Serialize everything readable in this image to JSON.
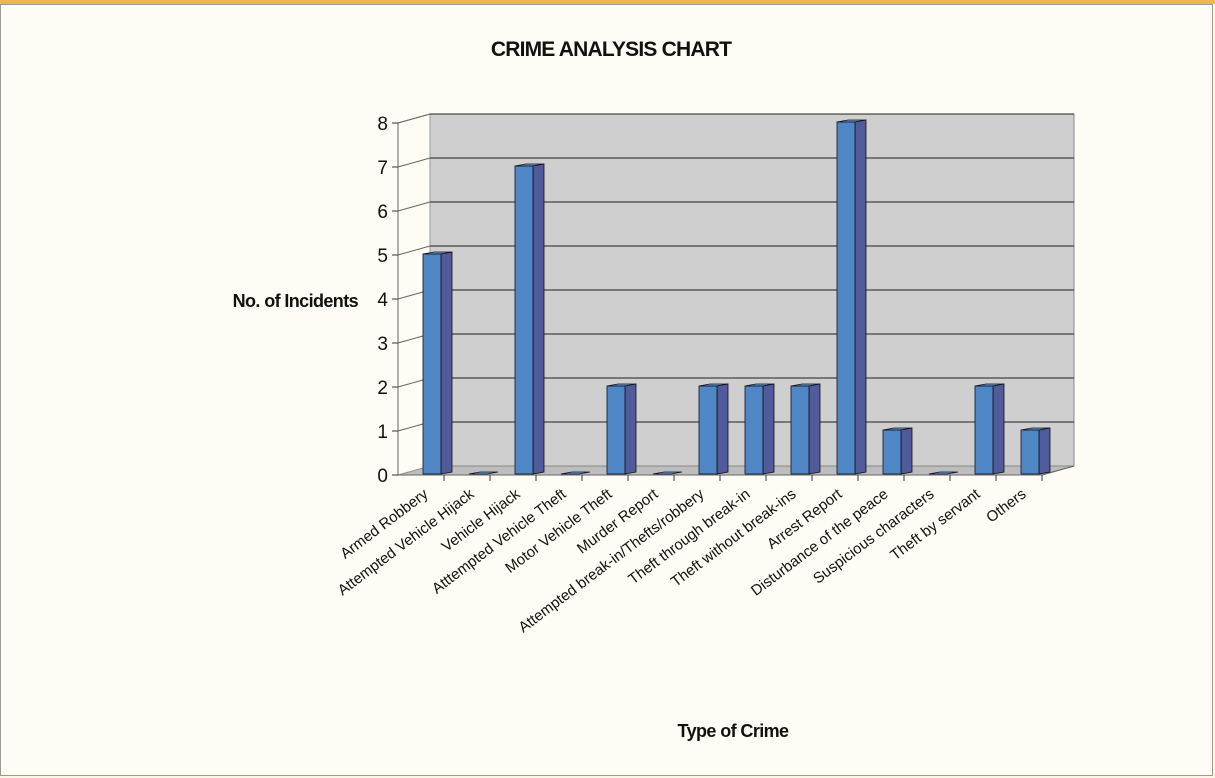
{
  "chart_data": {
    "type": "bar",
    "title": "CRIME ANALYSIS CHART",
    "xlabel": "Type of Crime",
    "ylabel": "No. of Incidents",
    "ylim": [
      0,
      8
    ],
    "yticks": [
      "0",
      "1",
      "2",
      "3",
      "4",
      "5",
      "6",
      "7",
      "8"
    ],
    "grid": true,
    "legend": "none",
    "categories": [
      "Armed Robbery",
      "Attempted Vehicle Hijack",
      "Vehicle Hijack",
      "Atttempted Vehicle Theft",
      "Motor Vehicle Theft",
      "Murder Report",
      "Attempted break-in/Thefts/robbery",
      "Theft through break-in",
      "Theft without break-ins",
      "Arrest Report",
      "Disturbance of the peace",
      "Suspicious characters",
      "Theft by servant",
      "Others"
    ],
    "values": [
      5,
      0,
      7,
      0,
      2,
      0,
      2,
      2,
      2,
      8,
      1,
      0,
      2,
      1
    ],
    "colors": {
      "bar_front": "#4f86c6",
      "bar_side": "#505a9c",
      "bar_top": "#6e9ee0",
      "plot_back": "#cfcfcf",
      "gridline": "#222222",
      "frame_accent": "#f0b74e"
    }
  }
}
